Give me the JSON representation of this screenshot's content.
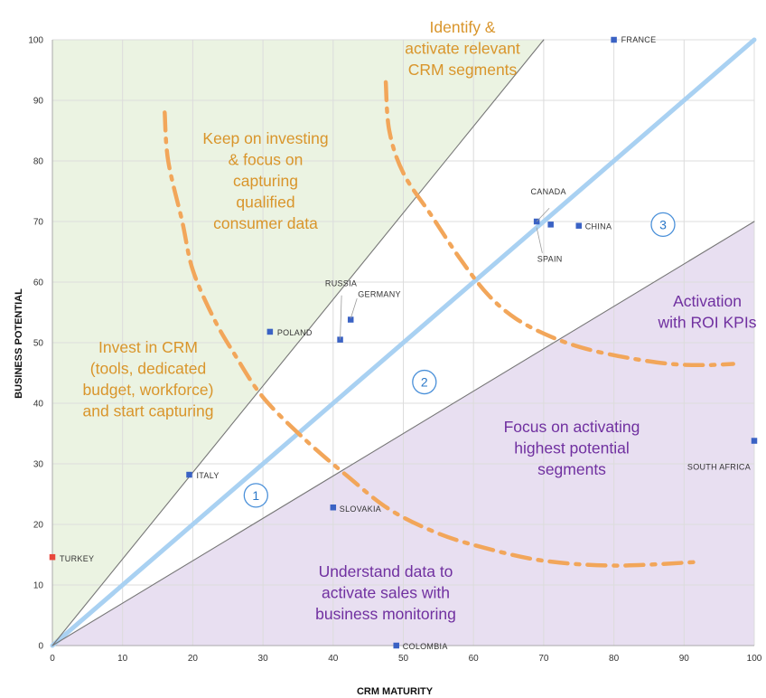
{
  "chart_data": {
    "type": "scatter",
    "xlabel": "CRM MATURITY",
    "ylabel": "BUSINESS POTENTIAL",
    "xlim": [
      0,
      100
    ],
    "ylim": [
      0,
      100
    ],
    "x_ticks": [
      "0",
      "10",
      "20",
      "30",
      "40",
      "50",
      "60",
      "70",
      "80",
      "90",
      "100"
    ],
    "y_ticks": [
      "0",
      "10",
      "20",
      "30",
      "40",
      "50",
      "60",
      "70",
      "80",
      "90",
      "100"
    ],
    "grid": "vertical and horizontal",
    "points": [
      {
        "label": "FRANCE",
        "x": 80,
        "y": 100,
        "color": "#3a62c4"
      },
      {
        "label": "CANADA",
        "x": 69,
        "y": 70,
        "color": "#3a62c4"
      },
      {
        "label": "SPAIN",
        "x": 71,
        "y": 69.5,
        "color": "#3a62c4"
      },
      {
        "label": "CHINA",
        "x": 75,
        "y": 69.3,
        "color": "#3a62c4"
      },
      {
        "label": "RUSSIA",
        "x": 41,
        "y": 50.5,
        "color": "#3a62c4"
      },
      {
        "label": "GERMANY",
        "x": 42.5,
        "y": 53.8,
        "color": "#3a62c4"
      },
      {
        "label": "POLAND",
        "x": 31,
        "y": 51.8,
        "color": "#3a62c4"
      },
      {
        "label": "ITALY",
        "x": 19.5,
        "y": 28.2,
        "color": "#3a62c4"
      },
      {
        "label": "SLOVAKIA",
        "x": 40,
        "y": 22.8,
        "color": "#3a62c4"
      },
      {
        "label": "TURKEY",
        "x": 0,
        "y": 14.6,
        "color": "#e8473c"
      },
      {
        "label": "COLOMBIA",
        "x": 49,
        "y": 0,
        "color": "#3a62c4"
      },
      {
        "label": "SOUTH AFRICA",
        "x": 100,
        "y": 33.8,
        "color": "#3a62c4"
      }
    ],
    "reference_lines": [
      {
        "from": [
          0,
          0
        ],
        "to": [
          100,
          100
        ],
        "color": "#a9d1f2",
        "style": "thick"
      },
      {
        "from": [
          0,
          0
        ],
        "to": [
          70,
          100
        ],
        "color": "#777777",
        "style": "thin"
      },
      {
        "from": [
          0,
          0
        ],
        "to": [
          100,
          70
        ],
        "color": "#777777",
        "style": "thin"
      }
    ],
    "regions": [
      {
        "name": "upper-left",
        "color": "#ebf3e2"
      },
      {
        "name": "lower-right",
        "color": "#e8dff1"
      }
    ],
    "dashed_curves": [
      {
        "color": "#f2a65a",
        "points": [
          [
            16,
            88
          ],
          [
            16.5,
            80
          ],
          [
            18.5,
            70
          ],
          [
            20,
            62
          ],
          [
            23,
            54
          ],
          [
            26,
            48
          ],
          [
            30,
            41
          ],
          [
            36,
            34
          ],
          [
            42,
            28
          ],
          [
            48,
            22.5
          ],
          [
            55,
            18.5
          ],
          [
            62,
            16
          ],
          [
            70,
            14
          ],
          [
            80,
            13.2
          ],
          [
            92,
            13.8
          ]
        ]
      },
      {
        "color": "#f2a65a",
        "points": [
          [
            47.5,
            93
          ],
          [
            48,
            85
          ],
          [
            50,
            78
          ],
          [
            54,
            71
          ],
          [
            58,
            64
          ],
          [
            62,
            58
          ],
          [
            66,
            54
          ],
          [
            71,
            51
          ],
          [
            76,
            49
          ],
          [
            82,
            47.5
          ],
          [
            88,
            46.5
          ],
          [
            93,
            46.3
          ],
          [
            97,
            46.5
          ]
        ]
      }
    ],
    "annotations": {
      "a1": [
        "Identify &",
        "activate relevant",
        "CRM segments"
      ],
      "a2": [
        "Keep on investing",
        "& focus on",
        "capturing",
        "qualified",
        "consumer data"
      ],
      "a3": [
        "Invest in CRM",
        "(tools, dedicated",
        "budget, workforce)",
        "and start capturing"
      ],
      "a4": [
        "Activation",
        "with ROI KPIs"
      ],
      "a5": [
        "Focus on activating",
        "highest potential",
        "segments"
      ],
      "a6": [
        "Understand data to",
        "activate sales with",
        "business monitoring"
      ]
    },
    "zone_numbers": [
      "1",
      "2",
      "3"
    ]
  }
}
